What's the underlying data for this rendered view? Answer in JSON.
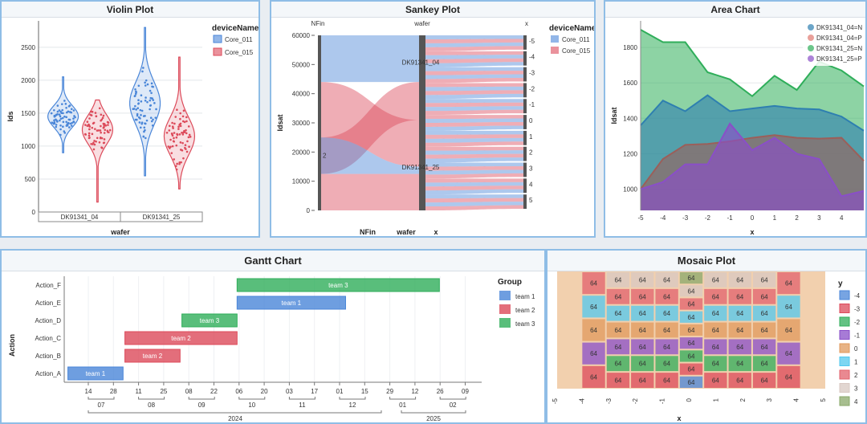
{
  "colors": {
    "blue": "#4a86d8",
    "red": "#dc4a5a",
    "green": "#2fae5a",
    "purple": "#8a4fc8",
    "orange": "#e09a5c",
    "cyan": "#52c8ee"
  },
  "chart_data": [
    {
      "type": "violin",
      "title": "Violin Plot",
      "xlabel": "wafer",
      "ylabel": "Ids",
      "ylim": [
        0,
        2900
      ],
      "yticks": [
        "0",
        "500",
        "1000",
        "1500",
        "2000",
        "2500"
      ],
      "categories": [
        "DK91341_04",
        "DK91341_25"
      ],
      "legend": {
        "title": "deviceName",
        "items": [
          "Core_011",
          "Core_015"
        ]
      },
      "series": [
        {
          "name": "Core_011",
          "values": [
            {
              "median": 1450,
              "min": 900,
              "max": 2050
            },
            {
              "median": 1650,
              "min": 550,
              "max": 2800
            }
          ]
        },
        {
          "name": "Core_015",
          "values": [
            {
              "median": 1250,
              "min": 150,
              "max": 1700
            },
            {
              "median": 1150,
              "min": 350,
              "max": 2350
            }
          ]
        }
      ]
    },
    {
      "type": "sankey",
      "title": "Sankey Plot",
      "ylabel": "Idsat",
      "axes": [
        "NFin",
        "wafer",
        "x"
      ],
      "footer": [
        "NFin",
        "wafer",
        "x"
      ],
      "ylim": [
        0,
        60000
      ],
      "yticks": [
        "0",
        "10000",
        "20000",
        "30000",
        "40000",
        "50000",
        "60000"
      ],
      "nfin_nodes": [
        "2",
        ""
      ],
      "wafer_nodes": [
        "DK91341_04",
        "DK91341_25"
      ],
      "x_nodes": [
        "-5",
        "-4",
        "-3",
        "-2",
        "-1",
        "0",
        "1",
        "2",
        "3",
        "4",
        "5"
      ],
      "legend": {
        "title": "deviceName",
        "items": [
          "Core_011",
          "Core_015"
        ]
      }
    },
    {
      "type": "area",
      "title": "Area Chart",
      "xlabel": "x",
      "ylabel": "Idsat",
      "x": [
        -5,
        -4,
        -3,
        -2,
        -1,
        0,
        1,
        2,
        3,
        4,
        5
      ],
      "xticks": [
        "-5",
        "-4",
        "-3",
        "-2",
        "-1",
        "0",
        "1",
        "2",
        "3",
        "4"
      ],
      "ylim": [
        880,
        1950
      ],
      "yticks": [
        "1000",
        "1200",
        "1400",
        "1600",
        "1800"
      ],
      "series": [
        {
          "name": "DK91341_25=N",
          "values": [
            1900,
            1830,
            1830,
            1660,
            1620,
            1525,
            1640,
            1560,
            1720,
            1670,
            1580
          ]
        },
        {
          "name": "DK91341_04=N",
          "values": [
            1360,
            1500,
            1440,
            1530,
            1440,
            1455,
            1470,
            1455,
            1450,
            1410,
            1330
          ]
        },
        {
          "name": "DK91341_04=P",
          "values": [
            1000,
            1170,
            1250,
            1255,
            1270,
            1290,
            1305,
            1290,
            1285,
            1290,
            1160
          ]
        },
        {
          "name": "DK91341_25=P",
          "values": [
            1000,
            1040,
            1140,
            1140,
            1370,
            1220,
            1290,
            1200,
            1170,
            960,
            990
          ]
        }
      ]
    },
    {
      "type": "gantt",
      "title": "Gantt Chart",
      "ylabel": "Action",
      "legend": {
        "title": "Group",
        "items": [
          "team 1",
          "team 2",
          "team 3"
        ]
      },
      "tasks": [
        {
          "action": "Action_F",
          "group": "team 3",
          "label": "team 3",
          "start": "2024-10-02",
          "end": "2025-01-20"
        },
        {
          "action": "Action_E",
          "group": "team 1",
          "label": "team 1",
          "start": "2024-10-02",
          "end": "2024-11-30"
        },
        {
          "action": "Action_D",
          "group": "team 3",
          "label": "team 3",
          "start": "2024-09-02",
          "end": "2024-10-02"
        },
        {
          "action": "Action_C",
          "group": "team 2",
          "label": "team 2",
          "start": "2024-08-02",
          "end": "2024-10-02"
        },
        {
          "action": "Action_B",
          "group": "team 2",
          "label": "team 2",
          "start": "2024-08-02",
          "end": "2024-09-01"
        },
        {
          "action": "Action_A",
          "group": "team 1",
          "label": "team 1",
          "start": "2024-07-02",
          "end": "2024-08-01"
        }
      ],
      "day_ticks": [
        "14",
        "28",
        "11",
        "25",
        "08",
        "22",
        "06",
        "20",
        "03",
        "17",
        "01",
        "15",
        "29",
        "12",
        "26",
        "09"
      ],
      "month_ticks": [
        "07",
        "08",
        "09",
        "10",
        "11",
        "12",
        "01",
        "02"
      ],
      "year_ticks": [
        "2024",
        "2025"
      ]
    },
    {
      "type": "mosaic",
      "title": "Mosaic Plot",
      "xlabel": "x",
      "ylabel": "y",
      "xticks": [
        "-5",
        "-4",
        "-3",
        "-2",
        "-1",
        "0",
        "1",
        "2",
        "3",
        "4",
        "5"
      ],
      "cell_value": "64",
      "legend": {
        "title": "y",
        "items": [
          "-4",
          "-3",
          "-2",
          "-1",
          "0",
          "1",
          "2",
          "3",
          "4"
        ]
      }
    }
  ]
}
